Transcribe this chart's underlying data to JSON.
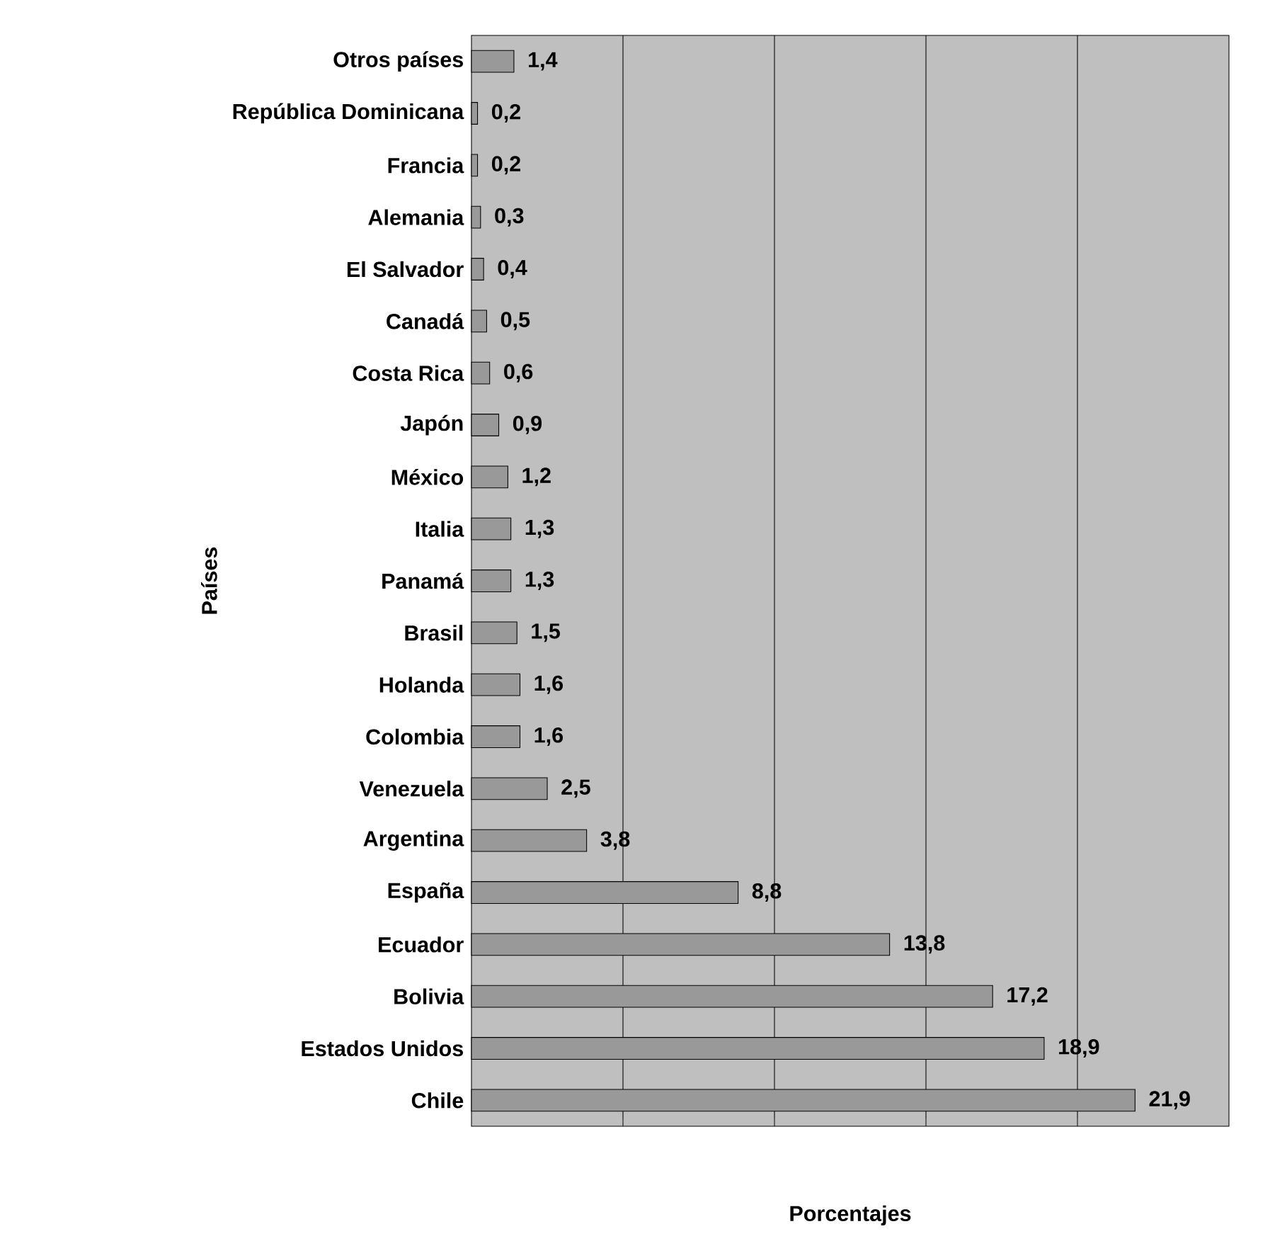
{
  "chart_data": {
    "type": "bar",
    "orientation": "horizontal",
    "ylabel": "Países",
    "xlabel": "Porcentajes",
    "categories": [
      "Otros países",
      "República Dominicana",
      "Francia",
      "Alemania",
      "El Salvador",
      "Canadá",
      "Costa Rica",
      "Japón",
      "México",
      "Italia",
      "Panamá",
      "Brasil",
      "Holanda",
      "Colombia",
      "Venezuela",
      "Argentina",
      "España",
      "Ecuador",
      "Bolivia",
      "Estados Unidos",
      "Chile"
    ],
    "values": [
      1.4,
      0.2,
      0.2,
      0.3,
      0.4,
      0.5,
      0.6,
      0.9,
      1.2,
      1.3,
      1.3,
      1.5,
      1.6,
      1.6,
      2.5,
      3.8,
      8.8,
      13.8,
      17.2,
      18.9,
      21.9
    ],
    "value_labels": [
      "1,4",
      "0,2",
      "0,2",
      "0,3",
      "0,4",
      "0,5",
      "0,6",
      "0,9",
      "1,2",
      "1,3",
      "1,3",
      "1,5",
      "1,6",
      "1,6",
      "2,5",
      "3,8",
      "8,8",
      "13,8",
      "17,2",
      "18,9",
      "21,9"
    ],
    "color": "#999999",
    "xlim": [
      0,
      25
    ],
    "xticks": [
      {
        "value": 5,
        "label": null
      },
      {
        "value": 10,
        "label": null
      },
      {
        "value": 15,
        "label": null
      },
      {
        "value": 20,
        "label": null
      }
    ],
    "grid": "x",
    "tick_labels": "y"
  }
}
